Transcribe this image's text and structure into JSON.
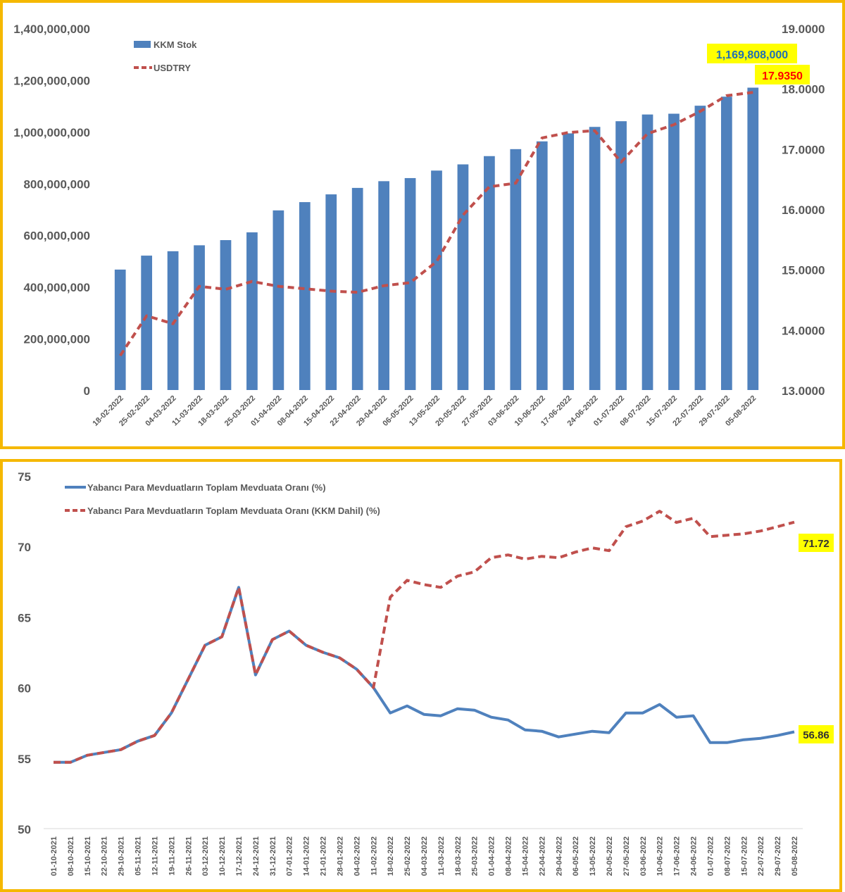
{
  "chart_data": [
    {
      "type": "bar",
      "title": "",
      "categories": [
        "18-02-2022",
        "25-02-2022",
        "04-03-2022",
        "11-03-2022",
        "18-03-2022",
        "25-03-2022",
        "01-04-2022",
        "08-04-2022",
        "15-04-2022",
        "22-04-2022",
        "29-04-2022",
        "06-05-2022",
        "13-05-2022",
        "20-05-2022",
        "27-05-2022",
        "03-06-2022",
        "10-06-2022",
        "17-06-2022",
        "24-06-2022",
        "01-07-2022",
        "08-07-2022",
        "15-07-2022",
        "22-07-2022",
        "29-07-2022",
        "05-08-2022"
      ],
      "series": [
        {
          "name": "KKM Stok",
          "type": "bar",
          "axis": "left",
          "color": "#4f81bd",
          "values": [
            466000000,
            520000000,
            537000000,
            560000000,
            580000000,
            610000000,
            695000000,
            727000000,
            757000000,
            782000000,
            808000000,
            820000000,
            849000000,
            873000000,
            905000000,
            932000000,
            962000000,
            993000000,
            1018000000,
            1040000000,
            1066000000,
            1069000000,
            1100000000,
            1135000000,
            1169808000
          ]
        },
        {
          "name": "USDTRY",
          "type": "line",
          "axis": "right",
          "color": "#c0504d",
          "dashed": true,
          "values": [
            13.57,
            14.23,
            14.1,
            14.72,
            14.67,
            14.8,
            14.72,
            14.68,
            14.64,
            14.62,
            14.73,
            14.78,
            15.13,
            15.9,
            16.37,
            16.43,
            17.18,
            17.27,
            17.3,
            16.78,
            17.25,
            17.4,
            17.62,
            17.88,
            17.935
          ]
        }
      ],
      "y_left": {
        "ylim": [
          0,
          1400000000
        ],
        "ticks": [
          0,
          200000000,
          400000000,
          600000000,
          800000000,
          1000000000,
          1200000000,
          1400000000
        ],
        "tick_labels": [
          "0",
          "200,000,000",
          "400,000,000",
          "600,000,000",
          "800,000,000",
          "1,000,000,000",
          "1,200,000,000",
          "1,400,000,000"
        ]
      },
      "y_right": {
        "ylim": [
          13,
          19
        ],
        "ticks": [
          13,
          14,
          15,
          16,
          17,
          18,
          19
        ],
        "tick_labels": [
          "13.0000",
          "14.0000",
          "15.0000",
          "16.0000",
          "17.0000",
          "18.0000",
          "19.0000"
        ]
      },
      "legend": {
        "placement": "top-left",
        "entries": [
          "KKM Stok",
          "USDTRY"
        ]
      },
      "annotations": [
        {
          "text": "1,169,808,000",
          "color": "#1f6fb5",
          "background": "#ffff00",
          "series": "KKM Stok"
        },
        {
          "text": "17.9350",
          "color": "#ff0000",
          "background": "#ffff00",
          "series": "USDTRY"
        }
      ],
      "grid": false
    },
    {
      "type": "line",
      "title": "",
      "x": [
        "01-10-2021",
        "08-10-2021",
        "15-10-2021",
        "22-10-2021",
        "29-10-2021",
        "05-11-2021",
        "12-11-2021",
        "19-11-2021",
        "26-11-2021",
        "03-12-2021",
        "10-12-2021",
        "17-12-2021",
        "24-12-2021",
        "31-12-2021",
        "07-01-2022",
        "14-01-2022",
        "21-01-2022",
        "28-01-2022",
        "04-02-2022",
        "11-02-2022",
        "18-02-2022",
        "25-02-2022",
        "04-03-2022",
        "11-03-2022",
        "18-03-2022",
        "25-03-2022",
        "01-04-2022",
        "08-04-2022",
        "15-04-2022",
        "22-04-2022",
        "29-04-2022",
        "06-05-2022",
        "13-05-2022",
        "20-05-2022",
        "27-05-2022",
        "03-06-2022",
        "10-06-2022",
        "17-06-2022",
        "24-06-2022",
        "01-07-2022",
        "08-07-2022",
        "15-07-2022",
        "22-07-2022",
        "29-07-2022",
        "05-08-2022"
      ],
      "series": [
        {
          "name": "Yabancı Para Mevduatların Toplam Mevduata Oranı (%)",
          "color": "#4f81bd",
          "dashed": false,
          "values": [
            54.7,
            54.7,
            55.2,
            55.4,
            55.6,
            56.2,
            56.6,
            58.2,
            60.6,
            63.0,
            63.6,
            67.1,
            60.9,
            63.4,
            64.0,
            63.0,
            62.5,
            62.1,
            61.3,
            60.0,
            58.2,
            58.7,
            58.1,
            58.0,
            58.5,
            58.4,
            57.9,
            57.7,
            57.0,
            56.9,
            56.5,
            56.7,
            56.9,
            56.8,
            58.2,
            58.2,
            58.8,
            57.9,
            58.0,
            56.1,
            56.1,
            56.3,
            56.4,
            56.6,
            56.86
          ]
        },
        {
          "name": "Yabancı Para Mevduatların Toplam Mevduata Oranı (KKM Dahil) (%)",
          "color": "#c0504d",
          "dashed": true,
          "values": [
            54.7,
            54.7,
            55.2,
            55.4,
            55.6,
            56.2,
            56.6,
            58.2,
            60.6,
            63.0,
            63.6,
            67.1,
            60.9,
            63.4,
            64.0,
            63.0,
            62.5,
            62.1,
            61.3,
            60.0,
            66.4,
            67.6,
            67.3,
            67.1,
            67.9,
            68.2,
            69.2,
            69.4,
            69.1,
            69.3,
            69.2,
            69.6,
            69.9,
            69.7,
            71.4,
            71.8,
            72.5,
            71.7,
            72.0,
            70.7,
            70.8,
            70.9,
            71.1,
            71.4,
            71.72
          ]
        }
      ],
      "y": {
        "ylim": [
          50,
          75
        ],
        "ticks": [
          50,
          55,
          60,
          65,
          70,
          75
        ],
        "tick_labels": [
          "50",
          "55",
          "60",
          "65",
          "70",
          "75"
        ]
      },
      "legend": {
        "placement": "top-left",
        "entries": [
          "Yabancı Para Mevduatların Toplam Mevduata Oranı (%)",
          "Yabancı Para Mevduatların Toplam Mevduata Oranı (KKM Dahil) (%)"
        ]
      },
      "annotations": [
        {
          "text": "71.72",
          "color": "#333333",
          "background": "#ffff00",
          "series": "Yabancı Para Mevduatların Toplam Mevduata Oranı (KKM Dahil) (%)"
        },
        {
          "text": "56.86",
          "color": "#333333",
          "background": "#ffff00",
          "series": "Yabancı Para Mevduatların Toplam Mevduata Oranı (%)"
        }
      ],
      "grid": false
    }
  ]
}
